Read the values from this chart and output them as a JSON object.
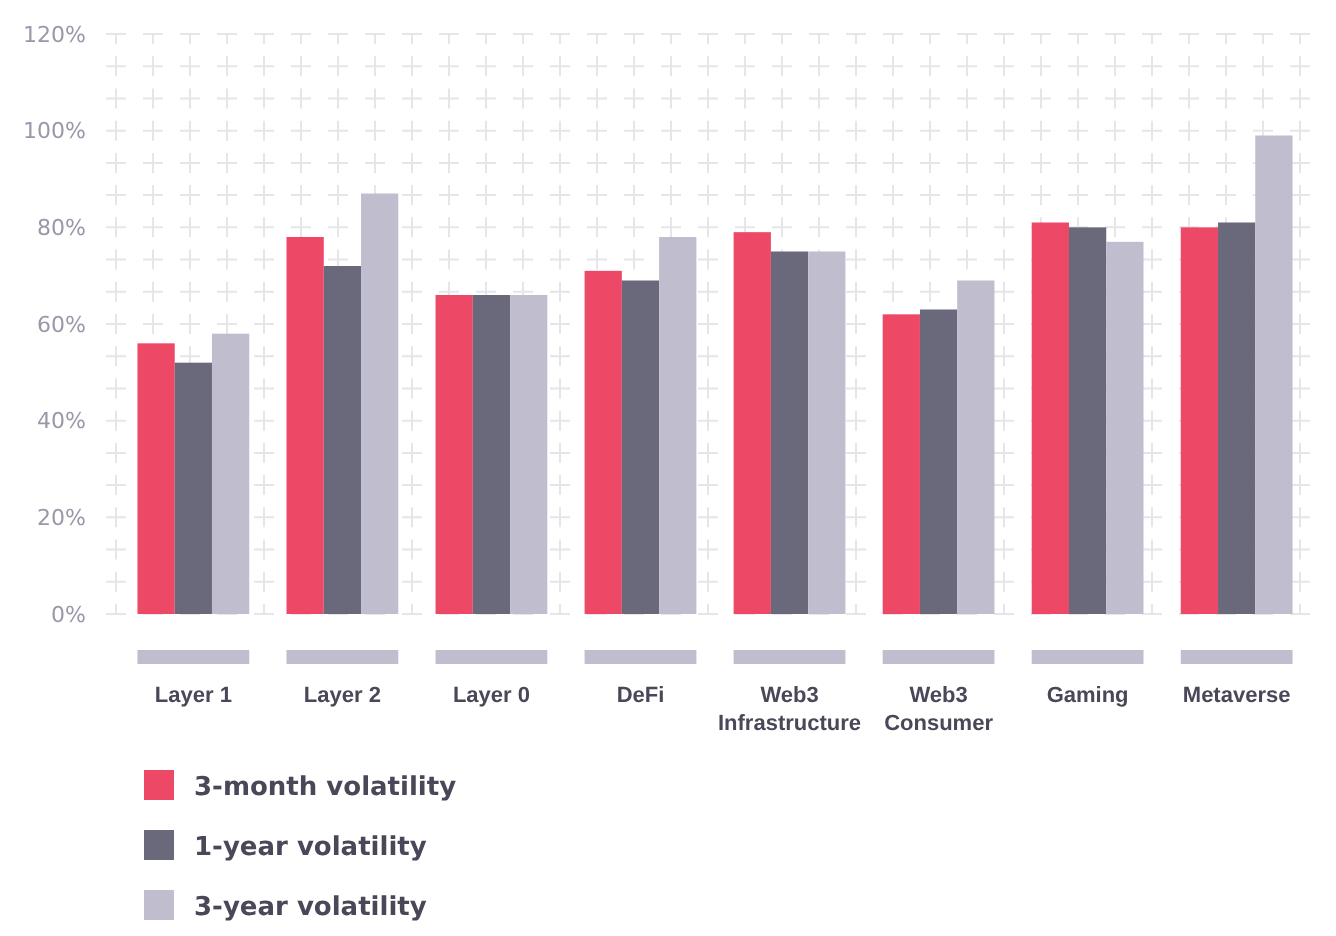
{
  "chart_data": {
    "type": "bar",
    "categories": [
      "Layer 1",
      "Layer 2",
      "Layer 0",
      "DeFi",
      "Web3 Infrastructure",
      "Web3 Consumer",
      "Gaming",
      "Metaverse"
    ],
    "series": [
      {
        "name": "3-month volatility",
        "color": "#ee4867",
        "values": [
          56,
          78,
          66,
          71,
          79,
          62,
          81,
          80
        ]
      },
      {
        "name": "1-year volatility",
        "color": "#6a697b",
        "values": [
          52,
          72,
          66,
          69,
          75,
          63,
          80,
          81
        ]
      },
      {
        "name": "3-year volatility",
        "color": "#c0bdcf",
        "values": [
          58,
          87,
          66,
          78,
          75,
          69,
          77,
          99
        ]
      }
    ],
    "ylim": [
      0,
      120
    ],
    "yticks": [
      {
        "value": 0,
        "label": "0%"
      },
      {
        "value": 20,
        "label": "20%"
      },
      {
        "value": 40,
        "label": "40%"
      },
      {
        "value": 60,
        "label": "60%"
      },
      {
        "value": 80,
        "label": "80%"
      },
      {
        "value": 100,
        "label": "100%"
      },
      {
        "value": 120,
        "label": "120%"
      }
    ],
    "grid": true,
    "legend": "bottom left"
  }
}
